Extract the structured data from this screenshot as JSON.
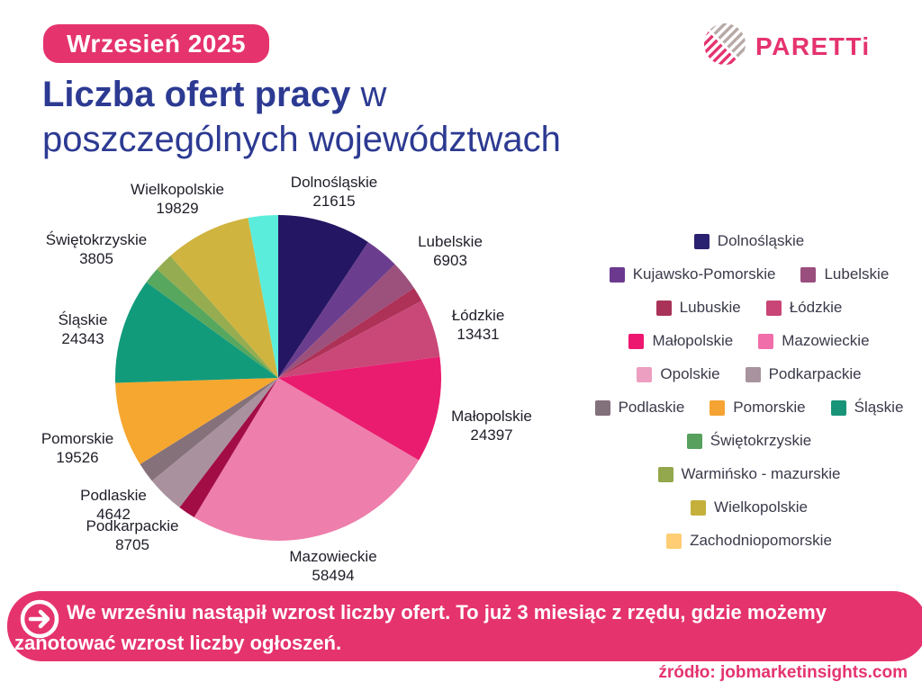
{
  "page": {
    "month_badge": "Wrzesień 2025",
    "source_note": "źródło: jobmarketinsights.com"
  },
  "brand": {
    "name": "PARETTi",
    "accent_color": "#E5336E",
    "logo_stripe_gray": "#B7A9A6"
  },
  "header": {
    "title_bold": "Liczba ofert pracy",
    "title_regular_word": "w",
    "title_line2": "poszczególnych województwach",
    "title_color": "#2C3A92"
  },
  "callout": {
    "icon": "arrow-right-icon",
    "text": "We wrześniu nastąpił wzrost liczby ofert. To już 3 miesiąc z rzędu, gdzie możemy zanotować wzrost liczby ogłoszeń.",
    "background": "#E5336E"
  },
  "chart_data": {
    "type": "pie",
    "title": "Liczba ofert pracy w poszczególnych województwach",
    "start_angle_deg": 0,
    "direction": "clockwise",
    "legend_position": "right",
    "slices": [
      {
        "name": "Dolnośląskie",
        "value": 21615,
        "value_label_visible": true,
        "pie_color": "#251663",
        "legend_color": "#2B2171"
      },
      {
        "name": "Kujawsko-Pomorskie",
        "value": 7900,
        "value_label_visible": false,
        "value_estimated": true,
        "pie_color": "#6B3D8E",
        "legend_color": "#6B3A8F"
      },
      {
        "name": "Lubelskie",
        "value": 6903,
        "value_label_visible": true,
        "pie_color": "#9B517C",
        "legend_color": "#9A4E7E"
      },
      {
        "name": "Lubuskie",
        "value": 3400,
        "value_label_visible": false,
        "value_estimated": true,
        "pie_color": "#AE3158",
        "legend_color": "#A93358"
      },
      {
        "name": "Łódzkie",
        "value": 13431,
        "value_label_visible": true,
        "pie_color": "#C94878",
        "legend_color": "#C94577"
      },
      {
        "name": "Małopolskie",
        "value": 24397,
        "value_label_visible": true,
        "pie_color": "#EA1C70",
        "legend_color": "#ED176F"
      },
      {
        "name": "Mazowieckie",
        "value": 58494,
        "value_label_visible": true,
        "pie_color": "#EE7EAB",
        "legend_color": "#F06EA9"
      },
      {
        "name": "Opolskie",
        "value": 4000,
        "value_label_visible": false,
        "value_estimated": true,
        "pie_color": "#A30D45",
        "legend_color": "#EC9FC0"
      },
      {
        "name": "Podkarpackie",
        "value": 8705,
        "value_label_visible": true,
        "pie_color": "#A9929E",
        "legend_color": "#A8939E"
      },
      {
        "name": "Podlaskie",
        "value": 4642,
        "value_label_visible": true,
        "pie_color": "#84717A",
        "legend_color": "#82707B"
      },
      {
        "name": "Pomorskie",
        "value": 19526,
        "value_label_visible": true,
        "pie_color": "#F6A72F",
        "legend_color": "#F5A333"
      },
      {
        "name": "Śląskie",
        "value": 24343,
        "value_label_visible": true,
        "pie_color": "#119B7B",
        "legend_color": "#189478"
      },
      {
        "name": "Świętokrzyskie",
        "value": 3805,
        "value_label_visible": true,
        "pie_color": "#57A75F",
        "legend_color": "#57A05D"
      },
      {
        "name": "Warmińsko - mazurskie",
        "value": 4300,
        "value_label_visible": false,
        "value_estimated": true,
        "pie_color": "#95AD50",
        "legend_color": "#93A84C"
      },
      {
        "name": "Wielkopolskie",
        "value": 19829,
        "value_label_visible": true,
        "pie_color": "#D0B440",
        "legend_color": "#C4B03B"
      },
      {
        "name": "Zachodniopomorskie",
        "value": 6900,
        "value_label_visible": false,
        "value_estimated": true,
        "pie_color": "#5BEDDB",
        "legend_color": "#FFCD74"
      }
    ]
  }
}
